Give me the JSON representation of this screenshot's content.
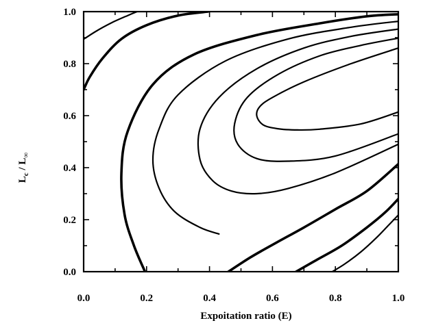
{
  "chart_data": {
    "type": "contour",
    "title": "",
    "xlabel": "Expoitation ratio (E)",
    "ylabel_parts": {
      "main1": "L",
      "sub1": "c",
      "sep": " / ",
      "main2": "L",
      "sub2": "∞"
    },
    "xlim": [
      0,
      1
    ],
    "ylim": [
      0,
      1
    ],
    "x_ticks": [
      {
        "v": 0.0,
        "label": "0.0"
      },
      {
        "v": 0.2,
        "label": "0.2"
      },
      {
        "v": 0.4,
        "label": "0.4"
      },
      {
        "v": 0.6,
        "label": "0.6"
      },
      {
        "v": 0.8,
        "label": "0.8"
      },
      {
        "v": 1.0,
        "label": "1.0"
      }
    ],
    "x_minor_ticks": [
      0.1,
      0.3,
      0.5,
      0.7,
      0.9
    ],
    "y_ticks": [
      {
        "v": 0.0,
        "label": "0.0"
      },
      {
        "v": 0.2,
        "label": "0.2"
      },
      {
        "v": 0.4,
        "label": "0.4"
      },
      {
        "v": 0.6,
        "label": "0.6"
      },
      {
        "v": 0.8,
        "label": "0.8"
      },
      {
        "v": 1.0,
        "label": "1.0"
      }
    ],
    "y_minor_ticks": [
      0.1,
      0.3,
      0.5,
      0.7,
      0.9
    ],
    "grid": false,
    "contours": [
      {
        "weight": "thin",
        "points": [
          [
            0.0,
            0.894
          ],
          [
            0.04,
            0.925
          ],
          [
            0.09,
            0.958
          ],
          [
            0.14,
            0.985
          ],
          [
            0.17,
            1.0
          ]
        ]
      },
      {
        "weight": "thick",
        "points": [
          [
            0.0,
            0.7
          ],
          [
            0.02,
            0.75
          ],
          [
            0.06,
            0.82
          ],
          [
            0.12,
            0.895
          ],
          [
            0.2,
            0.948
          ],
          [
            0.3,
            0.985
          ],
          [
            0.395,
            1.0
          ]
        ]
      },
      {
        "weight": "thick",
        "points": [
          [
            0.195,
            0.0
          ],
          [
            0.16,
            0.1
          ],
          [
            0.13,
            0.22
          ],
          [
            0.12,
            0.38
          ],
          [
            0.14,
            0.54
          ],
          [
            0.22,
            0.72
          ],
          [
            0.35,
            0.835
          ],
          [
            0.55,
            0.91
          ],
          [
            0.75,
            0.955
          ],
          [
            0.9,
            0.982
          ],
          [
            1.0,
            0.99
          ]
        ]
      },
      {
        "weight": "thin",
        "points": [
          [
            1.0,
            0.963
          ],
          [
            0.85,
            0.94
          ],
          [
            0.65,
            0.895
          ],
          [
            0.45,
            0.81
          ],
          [
            0.3,
            0.68
          ],
          [
            0.24,
            0.55
          ],
          [
            0.22,
            0.43
          ],
          [
            0.24,
            0.32
          ],
          [
            0.29,
            0.23
          ],
          [
            0.37,
            0.17
          ],
          [
            0.43,
            0.145
          ]
        ]
      },
      {
        "weight": "thin",
        "points": [
          [
            1.0,
            0.933
          ],
          [
            0.85,
            0.905
          ],
          [
            0.7,
            0.86
          ],
          [
            0.55,
            0.78
          ],
          [
            0.43,
            0.67
          ],
          [
            0.37,
            0.55
          ],
          [
            0.37,
            0.43
          ],
          [
            0.41,
            0.35
          ],
          [
            0.47,
            0.31
          ],
          [
            0.55,
            0.3
          ],
          [
            0.65,
            0.32
          ],
          [
            0.8,
            0.38
          ],
          [
            1.0,
            0.49
          ]
        ]
      },
      {
        "weight": "thin",
        "points": [
          [
            1.0,
            0.898
          ],
          [
            0.88,
            0.87
          ],
          [
            0.75,
            0.83
          ],
          [
            0.62,
            0.76
          ],
          [
            0.52,
            0.67
          ],
          [
            0.48,
            0.57
          ],
          [
            0.49,
            0.49
          ],
          [
            0.55,
            0.435
          ],
          [
            0.65,
            0.425
          ],
          [
            0.8,
            0.445
          ],
          [
            1.0,
            0.53
          ]
        ]
      },
      {
        "weight": "thin",
        "points": [
          [
            1.0,
            0.614
          ],
          [
            0.88,
            0.568
          ],
          [
            0.75,
            0.548
          ],
          [
            0.68,
            0.545
          ],
          [
            0.615,
            0.55
          ],
          [
            0.57,
            0.565
          ],
          [
            0.55,
            0.6
          ],
          [
            0.56,
            0.635
          ],
          [
            0.6,
            0.67
          ],
          [
            0.7,
            0.73
          ],
          [
            0.85,
            0.8
          ],
          [
            1.0,
            0.86
          ]
        ]
      },
      {
        "weight": "thick",
        "points": [
          [
            0.46,
            0.0
          ],
          [
            0.53,
            0.055
          ],
          [
            0.61,
            0.11
          ],
          [
            0.7,
            0.17
          ],
          [
            0.8,
            0.24
          ],
          [
            0.9,
            0.31
          ],
          [
            1.0,
            0.414
          ]
        ]
      },
      {
        "weight": "thick",
        "points": [
          [
            0.675,
            0.0
          ],
          [
            0.74,
            0.045
          ],
          [
            0.82,
            0.1
          ],
          [
            0.9,
            0.17
          ],
          [
            0.96,
            0.23
          ],
          [
            1.0,
            0.28
          ]
        ]
      },
      {
        "weight": "thin",
        "points": [
          [
            0.79,
            0.0
          ],
          [
            0.83,
            0.03
          ],
          [
            0.88,
            0.075
          ],
          [
            0.93,
            0.13
          ],
          [
            0.97,
            0.18
          ],
          [
            1.0,
            0.218
          ]
        ]
      }
    ]
  }
}
